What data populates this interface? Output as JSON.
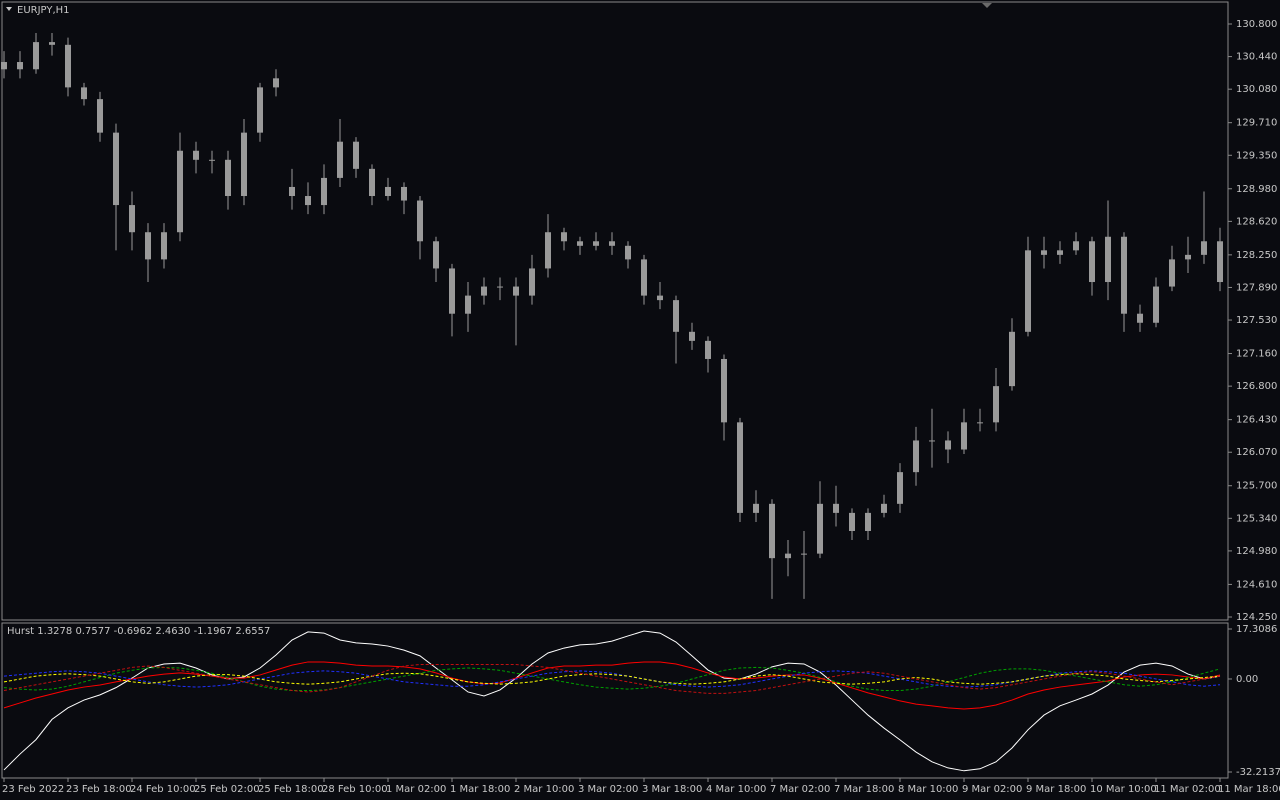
{
  "chart_data": [
    {
      "type": "candlestick",
      "title": "EURJPY,H1",
      "color": "#9a9a9a",
      "categories": [
        "23 Feb 2022",
        null,
        null,
        null,
        "23 Feb 18:00",
        null,
        null,
        null,
        "24 Feb 10:00",
        null,
        null,
        null,
        "25 Feb 02:00",
        null,
        null,
        null,
        "25 Feb 18:00",
        null,
        null,
        null,
        "28 Feb 10:00",
        null,
        null,
        null,
        "1 Mar 02:00",
        null,
        null,
        null,
        "1 Mar 18:00",
        null,
        null,
        null,
        "2 Mar 10:00",
        null,
        null,
        null,
        "3 Mar 02:00",
        null,
        null,
        null,
        "3 Mar 18:00",
        null,
        null,
        null,
        "4 Mar 10:00",
        null,
        null,
        null,
        "7 Mar 02:00",
        null,
        null,
        null,
        "7 Mar 18:00",
        null,
        null,
        null,
        "8 Mar 10:00",
        null,
        null,
        null,
        "9 Mar 02:00",
        null,
        null,
        null,
        "9 Mar 18:00",
        null,
        null,
        null,
        "10 Mar 10:00",
        null,
        null,
        null,
        "11 Mar 02:00",
        null,
        null,
        null,
        "11 Mar 18:00"
      ],
      "open": [
        130.3,
        130.38,
        130.3,
        130.6,
        130.57,
        130.1,
        129.97,
        129.6,
        128.8,
        128.5,
        128.2,
        128.5,
        129.4,
        129.3,
        129.3,
        128.9,
        129.6,
        130.1,
        129.0,
        128.9,
        128.8,
        129.1,
        129.5,
        129.2,
        128.9,
        129.0,
        128.85,
        128.4,
        128.1,
        127.6,
        127.8,
        127.9,
        127.9,
        127.8,
        128.1,
        128.5,
        128.4,
        128.35,
        128.4,
        128.35,
        128.2,
        127.8,
        127.75,
        127.4,
        127.3,
        127.1,
        126.4,
        125.4,
        125.5,
        124.9,
        124.95,
        124.95,
        125.5,
        125.4,
        125.2,
        125.4,
        125.5,
        125.85,
        126.2,
        126.2,
        126.1,
        126.4,
        126.4,
        126.8,
        127.4,
        128.3,
        128.25,
        128.3,
        128.4,
        127.95,
        128.45,
        127.6,
        127.5,
        127.9,
        128.2,
        128.25,
        128.4
      ],
      "high": [
        130.5,
        130.5,
        130.7,
        130.7,
        130.65,
        130.15,
        130.05,
        129.7,
        128.95,
        128.6,
        128.6,
        129.6,
        129.5,
        129.4,
        129.4,
        129.75,
        130.15,
        130.3,
        129.2,
        129.05,
        129.25,
        129.75,
        129.55,
        129.25,
        129.1,
        129.05,
        128.9,
        128.45,
        128.15,
        127.95,
        128.0,
        128.0,
        128.0,
        128.25,
        128.7,
        128.55,
        128.45,
        128.5,
        128.5,
        128.4,
        128.25,
        127.95,
        127.8,
        127.5,
        127.35,
        127.15,
        126.45,
        125.65,
        125.55,
        125.1,
        125.2,
        125.75,
        125.7,
        125.45,
        125.45,
        125.6,
        125.95,
        126.35,
        126.55,
        126.3,
        126.55,
        126.55,
        127.0,
        127.55,
        128.45,
        128.45,
        128.4,
        128.5,
        128.45,
        128.85,
        128.5,
        127.7,
        128.0,
        128.35,
        128.45,
        128.95,
        128.55
      ],
      "low": [
        130.2,
        130.2,
        130.25,
        130.45,
        130.0,
        129.9,
        129.5,
        128.3,
        128.3,
        127.95,
        128.1,
        128.4,
        129.15,
        129.15,
        128.75,
        128.8,
        129.5,
        130.0,
        128.75,
        128.7,
        128.7,
        129.0,
        129.1,
        128.8,
        128.85,
        128.7,
        128.2,
        127.95,
        127.35,
        127.4,
        127.7,
        127.75,
        127.25,
        127.7,
        128.0,
        128.3,
        128.25,
        128.3,
        128.25,
        128.1,
        127.7,
        127.65,
        127.05,
        127.2,
        126.95,
        126.2,
        125.3,
        125.3,
        124.45,
        124.7,
        124.45,
        124.9,
        125.25,
        125.1,
        125.1,
        125.35,
        125.4,
        125.7,
        125.9,
        125.95,
        126.05,
        126.3,
        126.3,
        126.75,
        127.35,
        128.1,
        128.15,
        128.25,
        127.8,
        127.75,
        127.4,
        127.4,
        127.45,
        127.85,
        128.05,
        128.15,
        127.85
      ],
      "close": [
        130.38,
        130.3,
        130.6,
        130.57,
        130.1,
        129.97,
        129.6,
        128.8,
        128.5,
        128.2,
        128.5,
        129.4,
        129.3,
        129.3,
        128.9,
        129.6,
        130.1,
        130.2,
        128.9,
        128.8,
        129.1,
        129.5,
        129.2,
        128.9,
        129.0,
        128.85,
        128.4,
        128.1,
        127.6,
        127.8,
        127.9,
        127.9,
        127.8,
        128.1,
        128.5,
        128.4,
        128.35,
        128.4,
        128.35,
        128.2,
        127.8,
        127.75,
        127.4,
        127.3,
        127.1,
        126.4,
        125.4,
        125.5,
        124.9,
        124.95,
        124.95,
        125.5,
        125.4,
        125.2,
        125.4,
        125.5,
        125.85,
        126.2,
        126.2,
        126.1,
        126.4,
        126.4,
        126.8,
        127.4,
        128.3,
        128.25,
        128.3,
        128.4,
        127.95,
        128.45,
        127.6,
        127.5,
        127.9,
        128.2,
        128.25,
        128.4,
        127.95
      ],
      "ylim": [
        124.25,
        130.8
      ],
      "yticks": [
        {
          "value": 130.8,
          "label": "130.800"
        },
        {
          "value": 130.44,
          "label": "130.440"
        },
        {
          "value": 130.08,
          "label": "130.080"
        },
        {
          "value": 129.71,
          "label": "129.710"
        },
        {
          "value": 129.35,
          "label": "129.350"
        },
        {
          "value": 128.98,
          "label": "128.980"
        },
        {
          "value": 128.62,
          "label": "128.620"
        },
        {
          "value": 128.25,
          "label": "128.250"
        },
        {
          "value": 127.89,
          "label": "127.890"
        },
        {
          "value": 127.53,
          "label": "127.530"
        },
        {
          "value": 127.16,
          "label": "127.160"
        },
        {
          "value": 126.8,
          "label": "126.800"
        },
        {
          "value": 126.43,
          "label": "126.430"
        },
        {
          "value": 126.07,
          "label": "126.070"
        },
        {
          "value": 125.7,
          "label": "125.700"
        },
        {
          "value": 125.34,
          "label": "125.340"
        },
        {
          "value": 124.98,
          "label": "124.980"
        },
        {
          "value": 124.61,
          "label": "124.610"
        },
        {
          "value": 124.25,
          "label": "124.250"
        }
      ]
    },
    {
      "type": "line",
      "title": "Hurst 1.3278 0.7577 -0.6962 2.4630 -1.1967 2.6557",
      "ylim": [
        -32.2137,
        17.3086
      ],
      "yticks": [
        17.3086,
        {
          "value": 0,
          "label": "0.00"
        },
        -32.2137
      ],
      "series": [
        {
          "color": "#ffffff",
          "dashed": false,
          "values": [
            -31.5,
            -26,
            -21,
            -14,
            -10,
            -7.3,
            -5.5,
            -3,
            0.3,
            3.8,
            5.2,
            5.5,
            3.8,
            1.4,
            0,
            0.7,
            3.8,
            8.3,
            13.5,
            16.3,
            15.9,
            13.5,
            12.5,
            12.1,
            11.4,
            10,
            8,
            3.8,
            -0.3,
            -4.5,
            -5.9,
            -3.8,
            0.3,
            5.2,
            9,
            10.7,
            11.8,
            12.1,
            13.1,
            14.9,
            16.6,
            15.9,
            12.8,
            8,
            3.1,
            0.3,
            0,
            1.7,
            4.2,
            5.5,
            5.2,
            2.4,
            -2.1,
            -7.3,
            -12.5,
            -17,
            -21.1,
            -25.3,
            -28.7,
            -30.8,
            -31.8,
            -31.1,
            -28.7,
            -23.9,
            -17.6,
            -12.5,
            -9.3,
            -7.3,
            -5.2,
            -2.1,
            2.4,
            4.8,
            5.5,
            4.5,
            1.7,
            0,
            1.0
          ]
        },
        {
          "color": "#ff0000",
          "dashed": false,
          "values": [
            -10,
            -8.3,
            -6.6,
            -5.2,
            -3.8,
            -2.8,
            -2.1,
            -1,
            0,
            1,
            1.7,
            2.1,
            1.7,
            1,
            0.3,
            0.3,
            1.4,
            3.1,
            4.8,
            5.9,
            5.9,
            5.5,
            4.8,
            4.5,
            4.5,
            4.2,
            3.5,
            2.1,
            0.3,
            -1,
            -1.7,
            -1.4,
            0.3,
            2.1,
            3.8,
            4.5,
            4.5,
            4.8,
            4.8,
            5.5,
            5.9,
            5.9,
            5.2,
            3.8,
            2.1,
            0.7,
            0,
            0.3,
            1,
            1.4,
            1.4,
            0.3,
            -1.4,
            -3.1,
            -4.8,
            -6.2,
            -7.6,
            -8.7,
            -9.3,
            -10,
            -10.4,
            -10,
            -9,
            -7.3,
            -5.2,
            -3.8,
            -2.8,
            -2.1,
            -1.4,
            -0.7,
            0.7,
            1.4,
            1.7,
            1.4,
            0.7,
            0,
            1.4
          ]
        },
        {
          "color": "#00a000",
          "dashed": true,
          "values": [
            -3,
            -3.5,
            -3.8,
            -3.5,
            -2.5,
            -1,
            0.5,
            2,
            3,
            3.8,
            4,
            3.8,
            3,
            2,
            0.5,
            -1,
            -2.5,
            -3.5,
            -4,
            -4,
            -3.8,
            -3,
            -2,
            -1,
            0,
            1,
            2,
            3,
            3.5,
            3.8,
            3.5,
            3,
            2,
            1,
            0,
            -1,
            -2,
            -2.8,
            -3.2,
            -3.5,
            -3.2,
            -2.5,
            -1.5,
            0,
            1.5,
            3,
            3.8,
            4,
            3.8,
            3,
            2,
            0.5,
            -1,
            -2.5,
            -3.5,
            -4,
            -4,
            -3.5,
            -2.5,
            -1,
            0.5,
            2,
            3,
            3.5,
            3.5,
            3,
            2,
            1,
            0,
            -1,
            -2,
            -2.5,
            -2,
            -1,
            0.5,
            2,
            3.5
          ]
        },
        {
          "color": "#2030ff",
          "dashed": true,
          "values": [
            1,
            1.5,
            2,
            2.5,
            2.8,
            2.5,
            2,
            1,
            0,
            -1,
            -2,
            -2.5,
            -2.8,
            -2.5,
            -2,
            -1,
            0,
            1,
            2,
            2.5,
            2.8,
            2.5,
            2,
            1,
            0,
            -1,
            -1.5,
            -2,
            -2.5,
            -2.5,
            -2,
            -1,
            0,
            1,
            2,
            2.5,
            2.8,
            2.5,
            2,
            1,
            0,
            -1,
            -2,
            -2.5,
            -2.8,
            -2.5,
            -2,
            -1,
            0,
            1,
            2,
            2.5,
            2.8,
            2.5,
            2,
            1,
            0,
            -1,
            -2,
            -2.5,
            -2.8,
            -2.5,
            -2,
            -1,
            0,
            1,
            2,
            2.5,
            2.8,
            2.5,
            2,
            1,
            0,
            -1,
            -2,
            -2.5,
            -2
          ]
        },
        {
          "color": "#ffff00",
          "dashed": true,
          "values": [
            -1,
            0,
            1,
            1.5,
            1.8,
            1.5,
            1,
            0,
            -1,
            -1.5,
            -1,
            0,
            1,
            1.5,
            1.5,
            1,
            0,
            -1,
            -1.5,
            -1.8,
            -1.5,
            -1,
            0,
            1,
            1.8,
            2,
            1.8,
            1,
            0,
            -1,
            -1.5,
            -1.8,
            -1.5,
            -1,
            0,
            1,
            1.5,
            1.8,
            1.5,
            1,
            0,
            -1,
            -1.5,
            -1.8,
            -1.5,
            -1,
            0,
            1,
            1.5,
            1,
            0,
            -1,
            -1.5,
            -1.8,
            -1.5,
            -1,
            0,
            0.5,
            0,
            -1,
            -1.5,
            -1.8,
            -1.5,
            -1,
            0,
            1,
            1.5,
            1.8,
            1.5,
            1,
            0,
            -0.5,
            -1,
            -0.5,
            0,
            0.5,
            1
          ]
        },
        {
          "color": "#c01010",
          "dashed": true,
          "values": [
            -4,
            -3,
            -2,
            -1,
            0,
            1,
            2,
            3,
            4,
            4.5,
            4,
            3,
            2,
            1,
            0,
            -1,
            -2,
            -3,
            -4,
            -4.5,
            -4,
            -3,
            -1,
            1,
            3,
            4.5,
            5,
            5,
            5,
            5,
            5,
            5,
            5,
            4.5,
            4,
            3,
            2,
            1,
            0,
            -1,
            -2,
            -3,
            -4,
            -4.5,
            -5,
            -5,
            -4.5,
            -4,
            -3,
            -2,
            -1,
            0,
            1,
            2,
            2.5,
            2,
            1,
            0,
            -1,
            -2,
            -3,
            -3.5,
            -3,
            -2,
            -1,
            0,
            1,
            2,
            2.5,
            2,
            1,
            0,
            -1,
            -2,
            -1,
            0,
            1
          ]
        }
      ]
    }
  ]
}
